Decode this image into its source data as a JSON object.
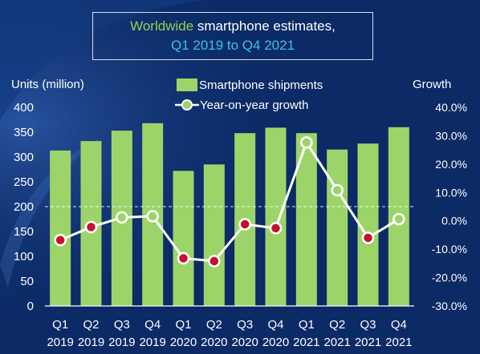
{
  "title": {
    "highlight": "Worldwide",
    "rest": " smartphone estimates,",
    "line2": "Q1 2019 to Q4 2021"
  },
  "chart_data": {
    "type": "bar",
    "categories": [
      {
        "q": "Q1",
        "year": "2019"
      },
      {
        "q": "Q2",
        "year": "2019"
      },
      {
        "q": "Q3",
        "year": "2019"
      },
      {
        "q": "Q4",
        "year": "2019"
      },
      {
        "q": "Q1",
        "year": "2020"
      },
      {
        "q": "Q2",
        "year": "2020"
      },
      {
        "q": "Q3",
        "year": "2020"
      },
      {
        "q": "Q4",
        "year": "2020"
      },
      {
        "q": "Q1",
        "year": "2021"
      },
      {
        "q": "Q2",
        "year": "2021"
      },
      {
        "q": "Q3",
        "year": "2021"
      },
      {
        "q": "Q4",
        "year": "2021"
      }
    ],
    "series": [
      {
        "name": "Smartphone shipments",
        "type": "bar",
        "axis": "left",
        "color": "#9dd46a",
        "values": [
          313,
          332,
          353,
          368,
          272,
          285,
          348,
          359,
          348,
          315,
          327,
          360
        ]
      },
      {
        "name": "Year-on-year growth",
        "type": "line",
        "axis": "right",
        "color": "#ffffff",
        "point_colors": [
          "#c8102e",
          "#c8102e",
          "#9dd46a",
          "#9dd46a",
          "#c8102e",
          "#c8102e",
          "#c8102e",
          "#c8102e",
          "#9dd46a",
          "#9dd46a",
          "#c8102e",
          "#9dd46a"
        ],
        "values": [
          -6.8,
          -2.2,
          1.2,
          1.6,
          -13.2,
          -14.2,
          -1.2,
          -2.6,
          27.6,
          10.8,
          -6.0,
          0.6
        ]
      }
    ],
    "ylabel": "Units (million)",
    "ylim": [
      0,
      400
    ],
    "yticks": [
      "0",
      "50",
      "100",
      "150",
      "200",
      "250",
      "300",
      "350",
      "400"
    ],
    "y2label": "Growth",
    "y2lim": [
      -30,
      40
    ],
    "y2ticks": [
      "-30.0%",
      "-20.0%",
      "-10.0%",
      "0.0%",
      "10.0%",
      "20.0%",
      "30.0%",
      "40.0%"
    ],
    "reference_line": 200,
    "legend_position": "top-center"
  }
}
